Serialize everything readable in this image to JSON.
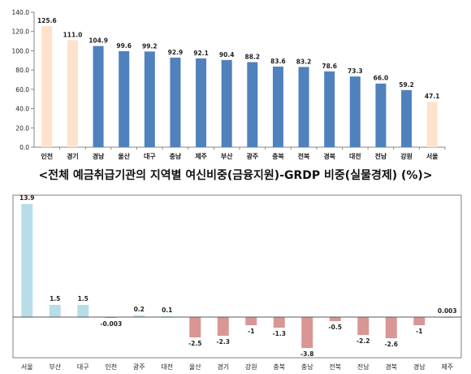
{
  "caption": "<전체 예금취급기관의 지역별 여신비중(금융지원)-GRDP 비중(실물경제) (%)>",
  "chart_data": [
    {
      "type": "bar",
      "categories": [
        "인천",
        "경기",
        "경남",
        "울산",
        "대구",
        "충남",
        "제주",
        "부산",
        "광주",
        "충북",
        "전북",
        "경북",
        "대전",
        "전남",
        "강원",
        "서울"
      ],
      "values": [
        125.6,
        111.0,
        104.9,
        99.6,
        99.2,
        92.9,
        92.1,
        90.4,
        88.2,
        83.6,
        83.2,
        78.6,
        73.3,
        66.0,
        59.2,
        47.1
      ],
      "value_labels": [
        "125.6",
        "111.0",
        "104.9",
        "99.6",
        "99.2",
        "92.9",
        "92.1",
        "90.4",
        "88.2",
        "83.6",
        "83.2",
        "78.6",
        "73.3",
        "66.0",
        "59.2",
        "47.1"
      ],
      "highlighted": [
        "인천",
        "경기",
        "서울"
      ],
      "ylim": [
        0,
        140
      ],
      "yticks": [
        "0.0",
        "20.0",
        "40.0",
        "60.0",
        "80.0",
        "100.0",
        "120.0",
        "140.0"
      ],
      "grid": false,
      "colors": {
        "bar": "#4f81bd",
        "highlight": "#fde2cd"
      }
    },
    {
      "type": "bar",
      "categories": [
        "서울",
        "부산",
        "대구",
        "인천",
        "광주",
        "대전",
        "울산",
        "경기",
        "강원",
        "충북",
        "충남",
        "전북",
        "전남",
        "경북",
        "경남",
        "제주"
      ],
      "values": [
        13.9,
        1.5,
        1.5,
        -0.003,
        0.2,
        0.1,
        -2.5,
        -2.3,
        -1,
        -1.3,
        -3.8,
        -0.5,
        -2.2,
        -2.6,
        -1,
        0.003
      ],
      "value_labels": [
        "13.9",
        "1.5",
        "1.5",
        "-0.003",
        "0.2",
        "0.1",
        "-2.5",
        "-2.3",
        "-1",
        "-1.3",
        "-3.8",
        "-0.5",
        "-2.2",
        "-2.6",
        "-1",
        "0.003"
      ],
      "ylim": [
        -4.5,
        14
      ],
      "grid": false,
      "colors": {
        "positive": "#b7dde8",
        "negative": "#d99694",
        "border": "#808080"
      }
    }
  ]
}
